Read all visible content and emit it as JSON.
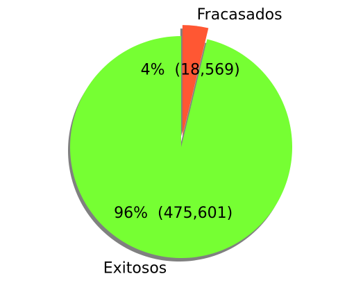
{
  "chart_data": {
    "type": "pie",
    "title": "",
    "slices": [
      {
        "label": "Fracasados",
        "value": 18569,
        "percent_label": "4%",
        "count_label": "(18,569)",
        "color": "#ff5733",
        "exploded": true
      },
      {
        "label": "Exitosos",
        "value": 475601,
        "percent_label": "96%",
        "count_label": "(475,601)",
        "color": "#76ff33",
        "exploded": false
      }
    ],
    "start_angle_deg": 90,
    "direction": "clockwise",
    "shadow": true,
    "shadow_color": "#808080",
    "legend": "none"
  }
}
